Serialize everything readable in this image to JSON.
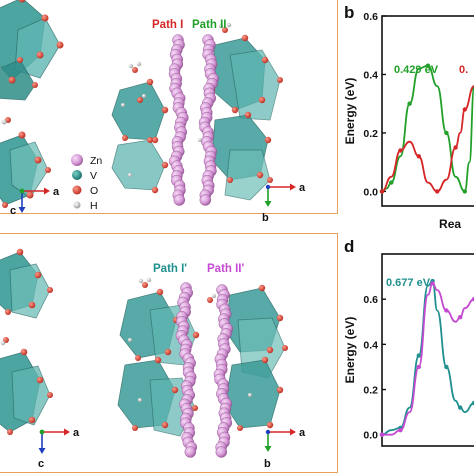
{
  "panel_labels": {
    "b": "b",
    "d": "d"
  },
  "top_panel": {
    "path_labels": [
      {
        "text": "Path I",
        "color": "#d62728"
      },
      {
        "text": "Path II",
        "color": "#22a02a"
      }
    ],
    "legend": [
      {
        "symbol": "Zn",
        "color": "#d8a0d8"
      },
      {
        "symbol": "V",
        "color": "#2a8f8a"
      },
      {
        "symbol": "O",
        "color": "#d43a2a"
      },
      {
        "symbol": "H",
        "color": "#bbbbbb"
      }
    ],
    "axes_left": {
      "x": "a",
      "y": "c"
    },
    "axes_right": {
      "x": "a",
      "y": "b"
    }
  },
  "bottom_panel": {
    "path_labels": [
      {
        "text": "Path I'",
        "color": "#1f8f8f"
      },
      {
        "text": "Path II'",
        "color": "#c44ad0"
      }
    ],
    "axes_left": {
      "x": "a",
      "y": "c"
    },
    "axes_right": {
      "x": "a",
      "y": "b"
    }
  },
  "chart_data": [
    {
      "type": "line",
      "panel": "b",
      "ylabel": "Energy (eV)",
      "xlabel": "Rea",
      "ylim": [
        -0.05,
        0.6
      ],
      "yticks": [
        "0.0",
        "0.2",
        "0.4",
        "0.6"
      ],
      "annotations": [
        {
          "text": "0.429 eV",
          "color": "#22a02a"
        },
        {
          "text": "0.",
          "color": "#d62728"
        }
      ],
      "series": [
        {
          "color": "#22a02a",
          "x": [
            0.0,
            0.05,
            0.1,
            0.2,
            0.3,
            0.4,
            0.5,
            0.6,
            0.7,
            0.8,
            0.9,
            0.95,
            1.0
          ],
          "y": [
            0.0,
            0.01,
            0.03,
            0.12,
            0.3,
            0.42,
            0.43,
            0.36,
            0.2,
            0.05,
            0.0,
            0.1,
            0.35
          ]
        },
        {
          "color": "#d62728",
          "x": [
            0.0,
            0.1,
            0.2,
            0.3,
            0.4,
            0.5,
            0.6,
            0.7,
            0.8,
            0.85,
            0.9,
            1.0
          ],
          "y": [
            0.0,
            0.05,
            0.14,
            0.17,
            0.12,
            0.03,
            0.0,
            0.04,
            0.15,
            0.2,
            0.28,
            0.36
          ]
        }
      ]
    },
    {
      "type": "line",
      "panel": "d",
      "ylabel": "Energy (eV)",
      "xlabel": "",
      "ylim": [
        -0.05,
        0.8
      ],
      "yticks": [
        "0.0",
        "0.2",
        "0.4",
        "0.6"
      ],
      "annotations": [
        {
          "text": "0.677 eV",
          "color": "#1f8f8f"
        }
      ],
      "series": [
        {
          "color": "#1f8f8f",
          "x": [
            0.0,
            0.1,
            0.2,
            0.3,
            0.4,
            0.5,
            0.55,
            0.6,
            0.7,
            0.8,
            0.85,
            0.9,
            1.0
          ],
          "y": [
            0.0,
            0.02,
            0.03,
            0.12,
            0.35,
            0.66,
            0.68,
            0.55,
            0.3,
            0.15,
            0.12,
            0.1,
            0.14
          ]
        },
        {
          "color": "#c44ad0",
          "x": [
            0.0,
            0.1,
            0.2,
            0.3,
            0.4,
            0.5,
            0.55,
            0.6,
            0.7,
            0.8,
            0.85,
            0.9,
            1.0
          ],
          "y": [
            0.0,
            0.0,
            0.02,
            0.1,
            0.3,
            0.62,
            0.67,
            0.64,
            0.55,
            0.5,
            0.52,
            0.56,
            0.6
          ]
        }
      ]
    }
  ]
}
